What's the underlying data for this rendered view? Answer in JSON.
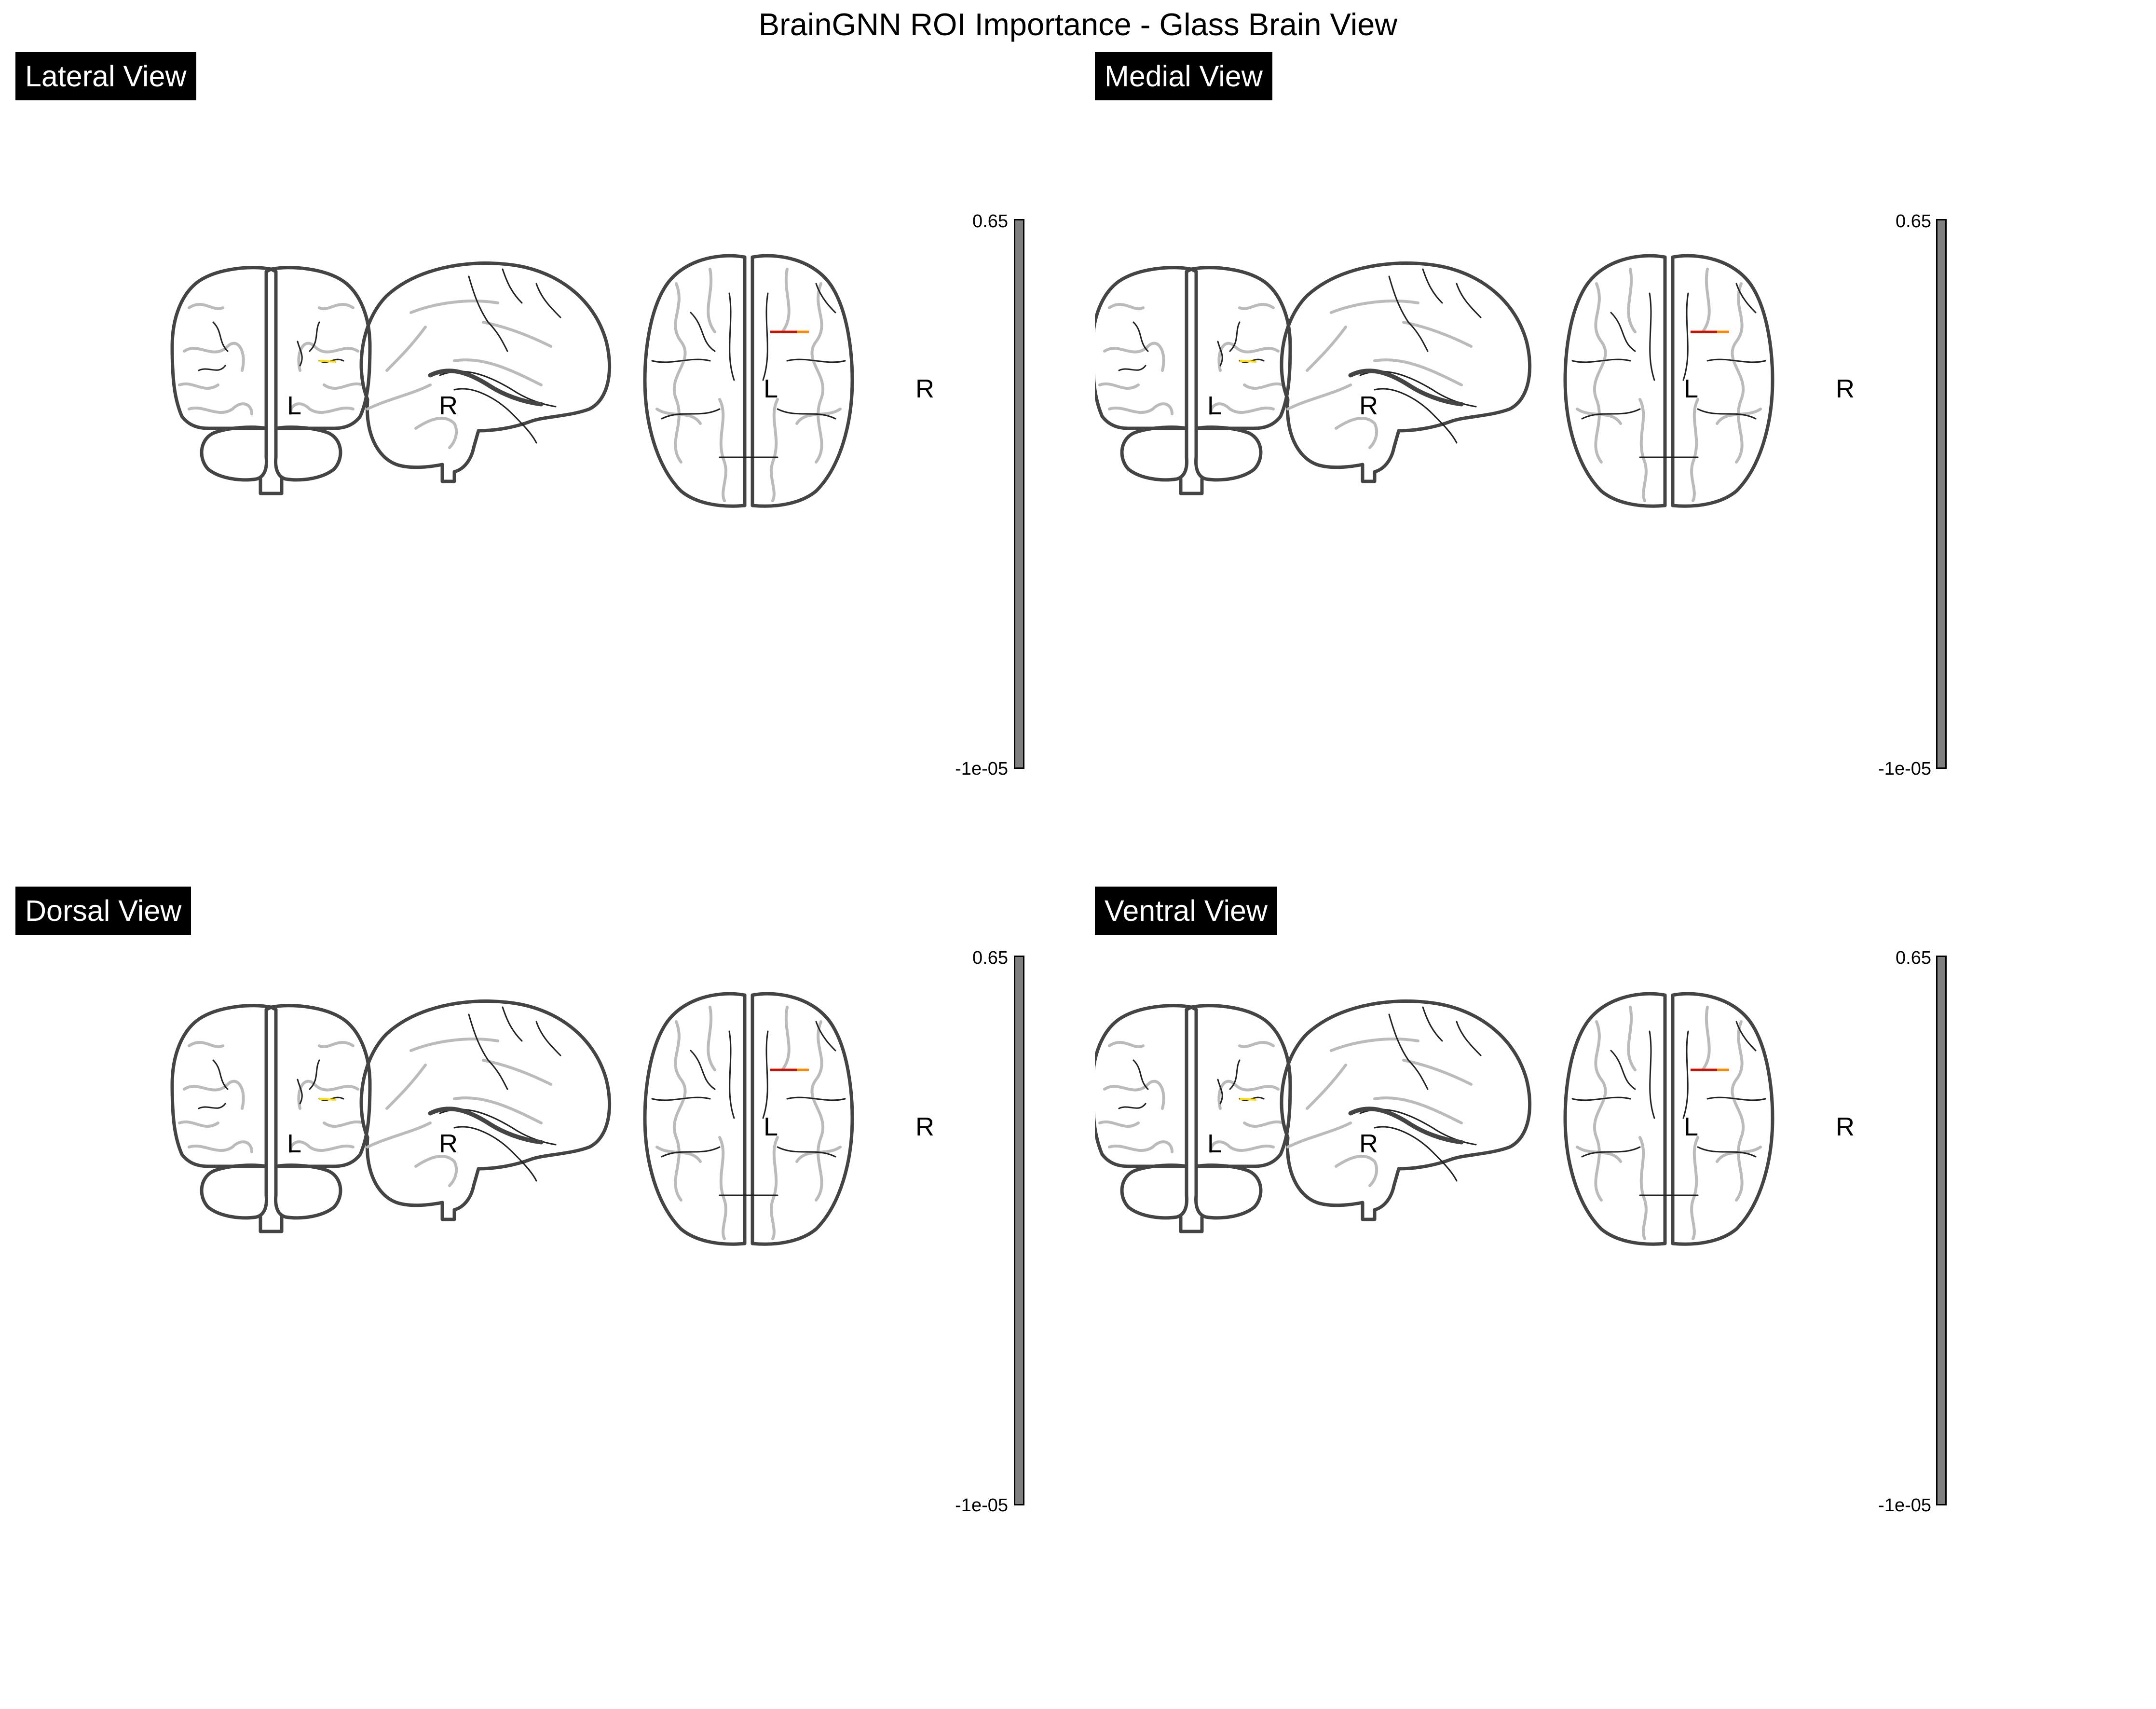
{
  "title": "BrainGNN ROI Importance - Glass Brain View",
  "colors": {
    "outline": "#444444",
    "sulcus_light": "#bbbbbb",
    "sulcus_dark": "#222222",
    "colorbar_fill": "#7f7f7f",
    "highlight": [
      "#cc1100",
      "#ff8800",
      "#ffdd00"
    ]
  },
  "panels": [
    {
      "label": "Lateral View",
      "orientation": {
        "left": "L",
        "right": "R"
      },
      "colorbar": {
        "max": "0.65",
        "min": "-1e-05"
      }
    },
    {
      "label": "Medial View",
      "orientation": {
        "left": "L",
        "right": "R"
      },
      "colorbar": {
        "max": "0.65",
        "min": "-1e-05"
      }
    },
    {
      "label": "Dorsal View",
      "orientation": {
        "left": "L",
        "right": "R"
      },
      "colorbar": {
        "max": "0.65",
        "min": "-1e-05"
      }
    },
    {
      "label": "Ventral View",
      "orientation": {
        "left": "L",
        "right": "R"
      },
      "colorbar": {
        "max": "0.65",
        "min": "-1e-05"
      }
    }
  ]
}
